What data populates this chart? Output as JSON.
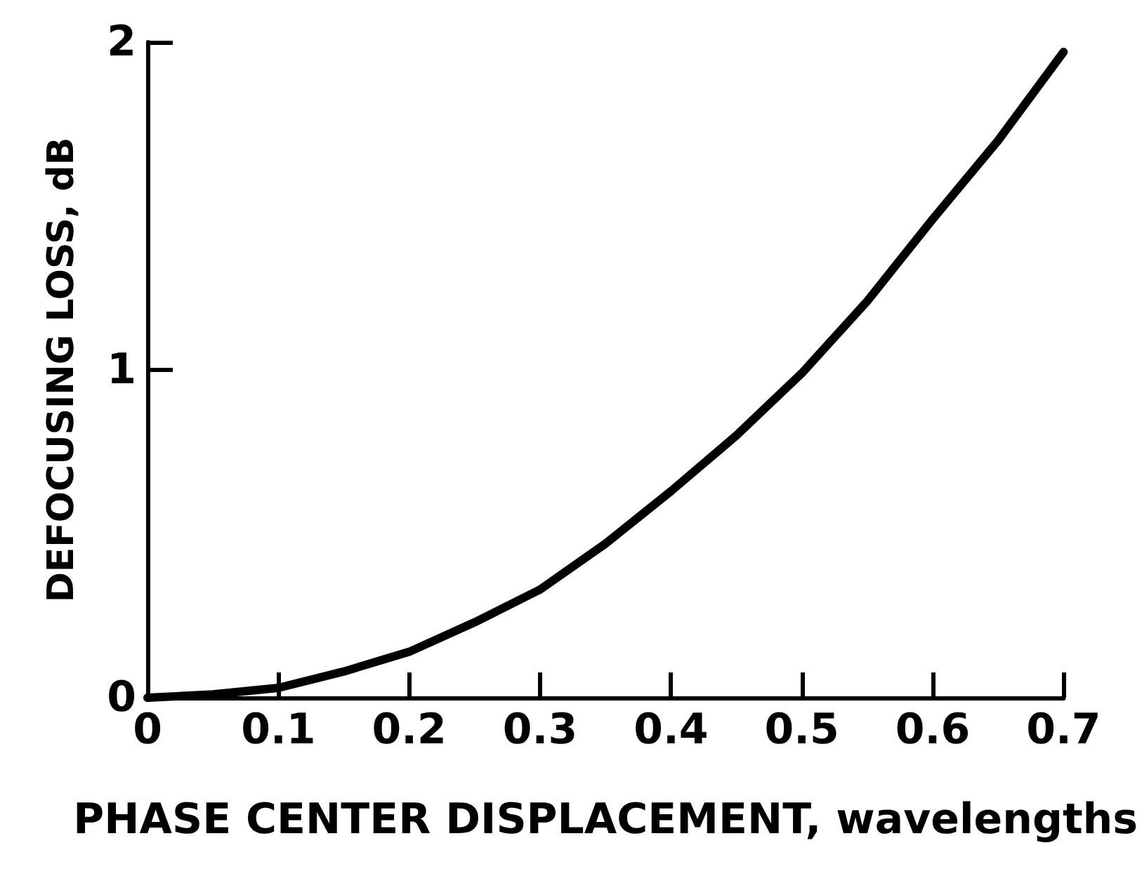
{
  "chart_data": {
    "type": "line",
    "xlabel": "PHASE CENTER DISPLACEMENT, wavelengths",
    "ylabel": "DEFOCUSING LOSS, dB",
    "x": [
      0,
      0.05,
      0.1,
      0.15,
      0.2,
      0.25,
      0.3,
      0.35,
      0.4,
      0.45,
      0.5,
      0.55,
      0.6,
      0.65,
      0.7
    ],
    "series": [
      {
        "color": "#000000",
        "values": [
          0,
          0.01,
          0.03,
          0.08,
          0.14,
          0.23,
          0.33,
          0.47,
          0.63,
          0.8,
          0.99,
          1.21,
          1.46,
          1.7,
          1.97
        ]
      }
    ],
    "xlim": [
      0,
      0.7
    ],
    "xticks": [
      0,
      0.1,
      0.2,
      0.3,
      0.4,
      0.5,
      0.6,
      0.7
    ],
    "ylim": [
      0,
      2
    ],
    "yticks": [
      0,
      1,
      2
    ],
    "grid": false,
    "marker": "none",
    "line_style": "solid"
  }
}
